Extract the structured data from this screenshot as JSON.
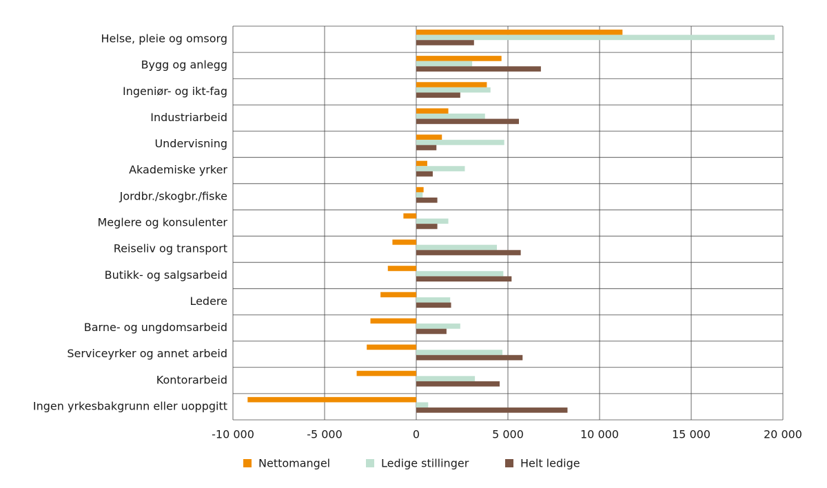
{
  "chart_data": {
    "type": "hbar",
    "categories": [
      "Helse, pleie og omsorg",
      "Bygg og anlegg",
      "Ingeniør- og ikt-fag",
      "Industriarbeid",
      "Undervisning",
      "Akademiske yrker",
      "Jordbr./skogbr./fiske",
      "Meglere og konsulenter",
      "Reiseliv og transport",
      "Butikk- og salgsarbeid",
      "Ledere",
      "Barne- og ungdomsarbeid",
      "Serviceyrker og annet arbeid",
      "Kontorarbeid",
      "Ingen yrkesbakgrunn eller uoppgitt"
    ],
    "series": [
      {
        "name": "Nettomangel",
        "color": "#f08c00",
        "values": [
          11250,
          4650,
          3850,
          1750,
          1400,
          600,
          400,
          -700,
          -1300,
          -1550,
          -1950,
          -2500,
          -2700,
          -3250,
          -9200
        ]
      },
      {
        "name": "Ledige stillinger",
        "color": "#bfe0d0",
        "values": [
          19550,
          3050,
          4050,
          3750,
          4800,
          2650,
          350,
          1750,
          4400,
          4750,
          1850,
          2400,
          4700,
          3200,
          650
        ]
      },
      {
        "name": "Helt ledige",
        "color": "#7a5544",
        "values": [
          3150,
          6800,
          2400,
          5600,
          1100,
          900,
          1150,
          1150,
          5700,
          5200,
          1900,
          1650,
          5800,
          4550,
          8250
        ]
      }
    ],
    "xlim": [
      -10000,
      20000
    ],
    "xticks": [
      {
        "value": -10000,
        "label": "-10 000"
      },
      {
        "value": -5000,
        "label": "-5 000"
      },
      0,
      {
        "value": 5000,
        "label": "5 000"
      },
      {
        "value": 10000,
        "label": "10 000"
      },
      {
        "value": 15000,
        "label": "15 000"
      },
      {
        "value": 20000,
        "label": "20 000"
      }
    ],
    "grid": true
  }
}
